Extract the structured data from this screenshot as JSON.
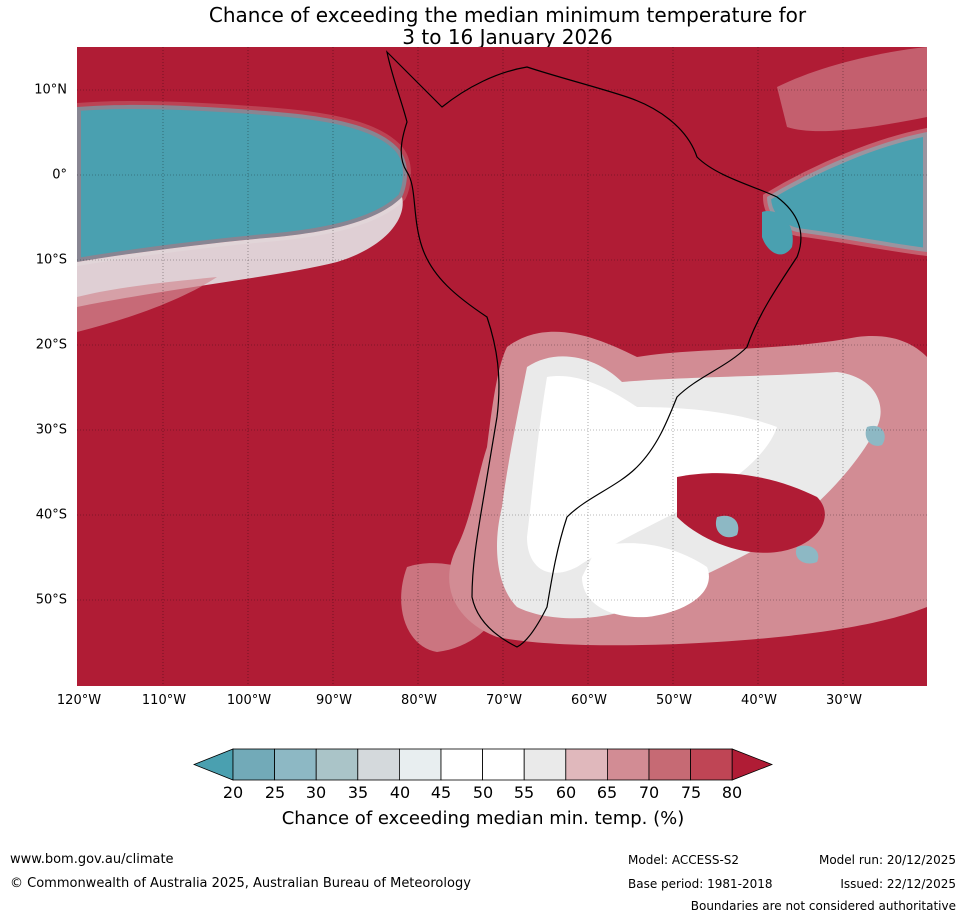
{
  "title": {
    "line1": "Chance of exceeding the median minimum temperature for",
    "line2": "3 to 16 January 2026"
  },
  "axes": {
    "lat_labels": [
      "10°N",
      "0°",
      "10°S",
      "20°S",
      "30°S",
      "40°S",
      "50°S"
    ],
    "lon_labels": [
      "120°W",
      "110°W",
      "100°W",
      "90°W",
      "80°W",
      "70°W",
      "60°W",
      "50°W",
      "40°W",
      "30°W"
    ]
  },
  "colorbar": {
    "ticks": [
      "20",
      "25",
      "30",
      "35",
      "40",
      "45",
      "50",
      "55",
      "60",
      "65",
      "70",
      "75",
      "80"
    ],
    "colors": [
      "#4aa0b0",
      "#72aab8",
      "#8db8c4",
      "#aac4c8",
      "#d4d9dc",
      "#e8eef0",
      "#ffffff",
      "#ffffff",
      "#eaeaea",
      "#e0b8bc",
      "#d28c94",
      "#c66a74",
      "#bf4555",
      "#b01c35"
    ],
    "label": "Chance of exceeding median min. temp. (%)"
  },
  "footer": {
    "url": "www.bom.gov.au/climate",
    "copyright": "© Commonwealth of Australia 2025, Australian Bureau of Meteorology",
    "model": "Model: ACCESS-S2",
    "base_period": "Base period: 1981-2018",
    "model_run": "Model run: 20/12/2025",
    "issued": "Issued: 22/12/2025",
    "disclaimer": "Boundaries are not considered authoritative"
  }
}
